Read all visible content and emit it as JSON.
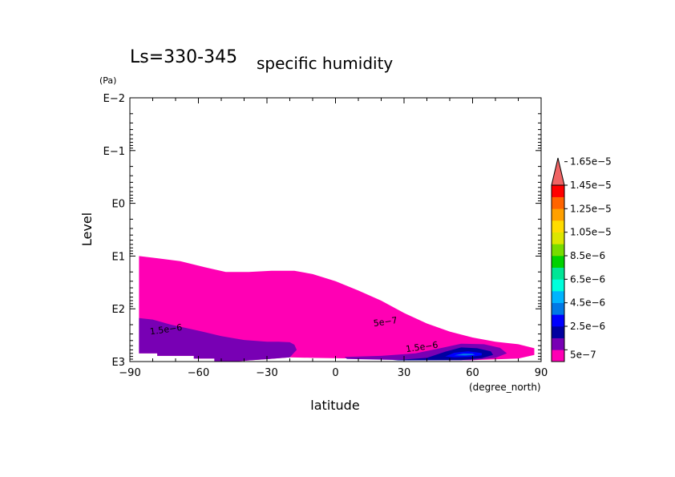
{
  "chart_data": {
    "type": "contour",
    "title_main": "Ls=330-345",
    "title_sub": "specific humidity",
    "xlabel": "latitude",
    "xunit": "(degree_north)",
    "ylabel": "Level",
    "yunit": "(Pa)",
    "xlim": [
      -90,
      90
    ],
    "ylim": [
      1000,
      0.01
    ],
    "yscale": "log",
    "x_ticks": [
      -90,
      -60,
      -30,
      0,
      30,
      60,
      90
    ],
    "x_tick_labels": [
      "−90",
      "−60",
      "−30",
      "0",
      "30",
      "60",
      "90"
    ],
    "y_ticks": [
      0.01,
      0.1,
      1,
      10,
      100,
      1000
    ],
    "y_tick_labels": [
      "E−2",
      "E−1",
      "E0",
      "E1",
      "E2",
      "E3"
    ],
    "colorbar": {
      "labels": [
        "5e−7",
        "2.5e−6",
        "4.5e−6",
        "6.5e−6",
        "8.5e−6",
        "1.05e−5",
        "1.25e−5",
        "1.45e−5",
        "1.65e−5"
      ],
      "colors": [
        "#ff00b4",
        "#7800b4",
        "#0000a0",
        "#0000ff",
        "#0078e6",
        "#00b4ff",
        "#00ffdc",
        "#00e696",
        "#00d200",
        "#78dc00",
        "#dce600",
        "#ffdc00",
        "#ffa000",
        "#ff6400",
        "#ff0000"
      ],
      "extend_color": "#f06464"
    },
    "contour_labels": [
      {
        "text": "5e−7",
        "lat": 22,
        "level": 200
      },
      {
        "text": "1.5e−6",
        "lat": -74,
        "level": 280
      },
      {
        "text": "1.5e−6",
        "lat": 38,
        "level": 600
      }
    ],
    "regions": [
      {
        "name": "band-5e-7",
        "fill": "#ff00b4",
        "points": [
          [
            -86,
            10
          ],
          [
            -78,
            11
          ],
          [
            -68,
            12.5
          ],
          [
            -58,
            16
          ],
          [
            -48,
            20
          ],
          [
            -38,
            20
          ],
          [
            -28,
            19
          ],
          [
            -18,
            19
          ],
          [
            -10,
            22
          ],
          [
            0,
            30
          ],
          [
            10,
            45
          ],
          [
            20,
            70
          ],
          [
            30,
            120
          ],
          [
            40,
            190
          ],
          [
            50,
            270
          ],
          [
            60,
            350
          ],
          [
            70,
            420
          ],
          [
            80,
            470
          ],
          [
            87,
            560
          ],
          [
            87,
            750
          ],
          [
            80,
            880
          ],
          [
            60,
            940
          ],
          [
            30,
            920
          ],
          [
            10,
            880
          ],
          [
            -10,
            850
          ],
          [
            -20,
            830
          ],
          [
            -30,
            900
          ],
          [
            -45,
            1000
          ],
          [
            -53,
            1000
          ],
          [
            -53,
            880
          ],
          [
            -62,
            880
          ],
          [
            -62,
            780
          ],
          [
            -78,
            780
          ],
          [
            -78,
            700
          ],
          [
            -86,
            700
          ]
        ]
      },
      {
        "name": "band-1.5e-6-south",
        "fill": "#7800b4",
        "points": [
          [
            -86,
            150
          ],
          [
            -80,
            160
          ],
          [
            -72,
            200
          ],
          [
            -60,
            260
          ],
          [
            -50,
            330
          ],
          [
            -40,
            390
          ],
          [
            -30,
            420
          ],
          [
            -25,
            420
          ],
          [
            -20,
            430
          ],
          [
            -18,
            480
          ],
          [
            -17,
            600
          ],
          [
            -20,
            830
          ],
          [
            -30,
            900
          ],
          [
            -45,
            1000
          ],
          [
            -53,
            1000
          ],
          [
            -53,
            880
          ],
          [
            -62,
            880
          ],
          [
            -62,
            780
          ],
          [
            -78,
            780
          ],
          [
            -78,
            700
          ],
          [
            -86,
            700
          ]
        ]
      },
      {
        "name": "band-1.5e-6-north",
        "fill": "#7800b4",
        "points": [
          [
            4,
            820
          ],
          [
            20,
            780
          ],
          [
            35,
            700
          ],
          [
            45,
            570
          ],
          [
            55,
            460
          ],
          [
            65,
            470
          ],
          [
            72,
            550
          ],
          [
            75,
            700
          ],
          [
            70,
            850
          ],
          [
            60,
            940
          ],
          [
            30,
            940
          ],
          [
            5,
            890
          ]
        ]
      },
      {
        "name": "band-2.5e-6",
        "fill": "#0000a0",
        "points": [
          [
            25,
            950
          ],
          [
            40,
            850
          ],
          [
            48,
            650
          ],
          [
            55,
            540
          ],
          [
            62,
            560
          ],
          [
            68,
            640
          ],
          [
            69,
            750
          ],
          [
            64,
            860
          ],
          [
            55,
            940
          ],
          [
            30,
            950
          ]
        ]
      },
      {
        "name": "band-4.5e-6",
        "fill": "#0000ff",
        "points": [
          [
            48,
            800
          ],
          [
            52,
            680
          ],
          [
            58,
            640
          ],
          [
            64,
            690
          ],
          [
            64,
            760
          ],
          [
            58,
            820
          ],
          [
            52,
            830
          ]
        ]
      },
      {
        "name": "band-6.5e-6",
        "fill": "#0078e6",
        "points": [
          [
            52,
            760
          ],
          [
            56,
            705
          ],
          [
            60,
            710
          ],
          [
            61,
            745
          ],
          [
            57,
            770
          ]
        ]
      }
    ]
  }
}
